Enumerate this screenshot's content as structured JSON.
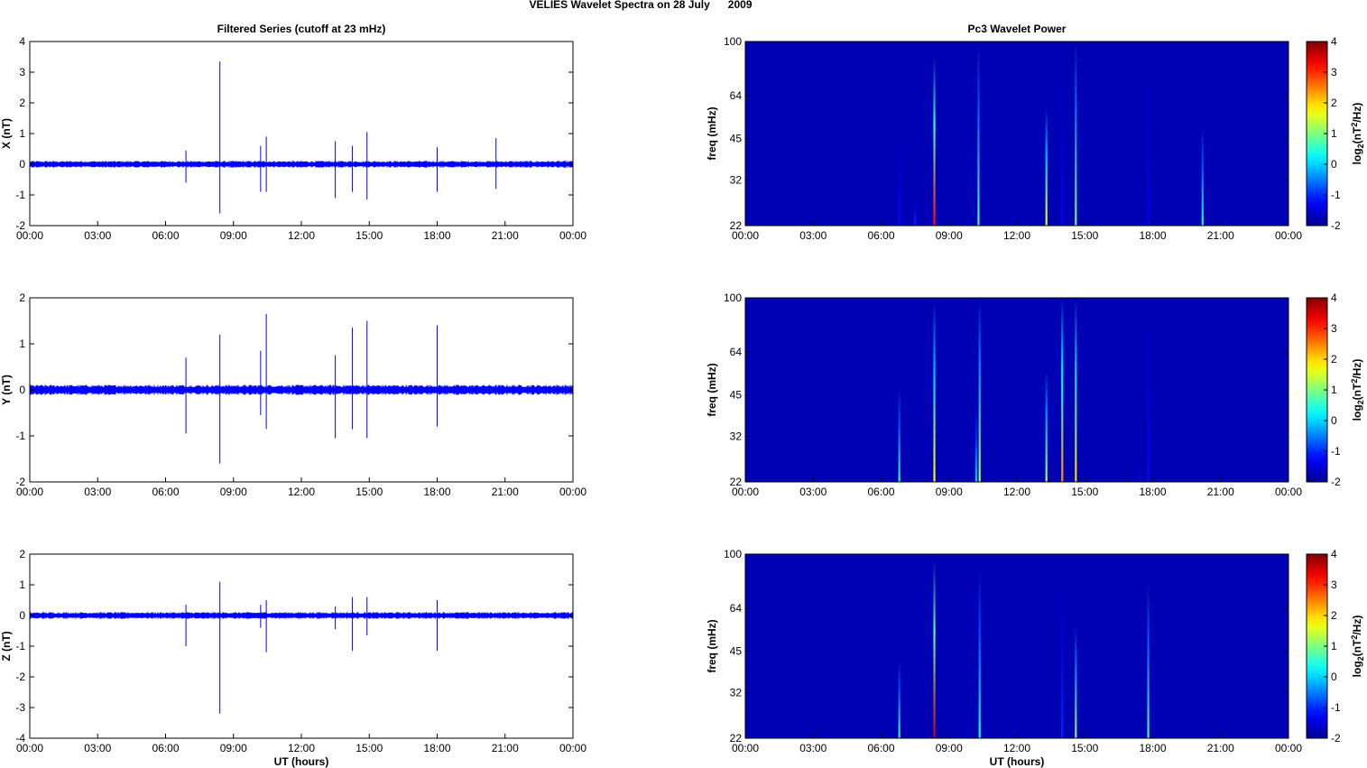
{
  "figure": {
    "title": "VELIES Wavelet Spectra on 28 July      2009",
    "left_title": "Filtered Series (cutoff at 23 mHz)",
    "right_title": "Pc3 Wavelet Power",
    "x_label": "UT (hours)",
    "freq_label": "freq (mHz)",
    "colorbar_label_main": "log",
    "colorbar_label_sub": "2",
    "colorbar_label_tail": "(nT",
    "colorbar_label_sup": "2",
    "colorbar_label_end": "/Hz)"
  },
  "colors": {
    "trace": "#0000ff",
    "axis": "#000000",
    "colormap": [
      "#00008f",
      "#0000ff",
      "#00ffff",
      "#ffff00",
      "#ff0000",
      "#800000"
    ]
  },
  "chart_data": [
    {
      "type": "line",
      "panel": "X",
      "ylabel": "X (nT)",
      "ylim": [
        -2,
        4
      ],
      "yticks": [
        "-2",
        "-1",
        "0",
        "1",
        "2",
        "3",
        "4"
      ],
      "xticks": [
        "00:00",
        "03:00",
        "06:00",
        "09:00",
        "12:00",
        "15:00",
        "18:00",
        "21:00",
        "00:00"
      ],
      "xlim_hours": [
        0,
        24
      ],
      "noise_amplitude": 0.1,
      "spikes": [
        {
          "t": 6.9,
          "max": 0.45,
          "min": -0.6
        },
        {
          "t": 8.4,
          "max": 3.35,
          "min": -1.6
        },
        {
          "t": 10.2,
          "max": 0.6,
          "min": -0.9
        },
        {
          "t": 10.45,
          "max": 0.9,
          "min": -0.9
        },
        {
          "t": 13.5,
          "max": 0.75,
          "min": -1.1
        },
        {
          "t": 14.25,
          "max": 0.6,
          "min": -0.9
        },
        {
          "t": 14.9,
          "max": 1.05,
          "min": -1.15
        },
        {
          "t": 18.0,
          "max": 0.55,
          "min": -0.9
        },
        {
          "t": 20.6,
          "max": 0.85,
          "min": -0.8
        }
      ]
    },
    {
      "type": "line",
      "panel": "Y",
      "ylabel": "Y (nT)",
      "ylim": [
        -2,
        2
      ],
      "yticks": [
        "-2",
        "-1",
        "0",
        "1",
        "2"
      ],
      "xticks": [
        "00:00",
        "03:00",
        "06:00",
        "09:00",
        "12:00",
        "15:00",
        "18:00",
        "21:00",
        "00:00"
      ],
      "xlim_hours": [
        0,
        24
      ],
      "noise_amplitude": 0.1,
      "spikes": [
        {
          "t": 6.9,
          "max": 0.7,
          "min": -0.95
        },
        {
          "t": 8.4,
          "max": 1.2,
          "min": -1.6
        },
        {
          "t": 10.2,
          "max": 0.85,
          "min": -0.55
        },
        {
          "t": 10.45,
          "max": 1.65,
          "min": -0.85
        },
        {
          "t": 13.5,
          "max": 0.75,
          "min": -1.05
        },
        {
          "t": 14.25,
          "max": 1.35,
          "min": -0.85
        },
        {
          "t": 14.9,
          "max": 1.5,
          "min": -1.05
        },
        {
          "t": 18.0,
          "max": 1.4,
          "min": -0.8
        }
      ]
    },
    {
      "type": "line",
      "panel": "Z",
      "ylabel": "Z (nT)",
      "ylim": [
        -4,
        2
      ],
      "yticks": [
        "-4",
        "-3",
        "-2",
        "-1",
        "0",
        "1",
        "2"
      ],
      "xticks": [
        "00:00",
        "03:00",
        "06:00",
        "09:00",
        "12:00",
        "15:00",
        "18:00",
        "21:00",
        "00:00"
      ],
      "xlim_hours": [
        0,
        24
      ],
      "xlabel": "UT (hours)",
      "noise_amplitude": 0.1,
      "spikes": [
        {
          "t": 6.9,
          "max": 0.35,
          "min": -1.0
        },
        {
          "t": 8.4,
          "max": 1.1,
          "min": -3.2
        },
        {
          "t": 10.2,
          "max": 0.35,
          "min": -0.4
        },
        {
          "t": 10.45,
          "max": 0.5,
          "min": -1.2
        },
        {
          "t": 13.5,
          "max": 0.3,
          "min": -0.45
        },
        {
          "t": 14.25,
          "max": 0.6,
          "min": -1.15
        },
        {
          "t": 14.9,
          "max": 0.6,
          "min": -0.65
        },
        {
          "t": 18.0,
          "max": 0.5,
          "min": -1.15
        }
      ]
    },
    {
      "type": "heatmap",
      "panel": "X-power",
      "ylabel": "freq (mHz)",
      "yticks": [
        "22",
        "32",
        "45",
        "64",
        "100"
      ],
      "ytick_values": [
        22,
        32,
        45,
        64,
        100
      ],
      "xticks": [
        "00:00",
        "03:00",
        "06:00",
        "09:00",
        "12:00",
        "15:00",
        "18:00",
        "21:00",
        "00:00"
      ],
      "xlim_hours": [
        0,
        24
      ],
      "ylim_mhz": [
        22,
        100
      ],
      "background_level": -2,
      "colorbar_ticks": [
        "-2",
        "-1",
        "0",
        "1",
        "2",
        "3",
        "4"
      ],
      "colorbar_range": [
        -2,
        4
      ],
      "events": [
        {
          "t": 6.8,
          "top_mhz": 50,
          "peak": -1.2
        },
        {
          "t": 7.5,
          "top_mhz": 28,
          "peak": -1.0
        },
        {
          "t": 8.35,
          "top_mhz": 88,
          "peak": 3.2
        },
        {
          "t": 10.3,
          "top_mhz": 100,
          "peak": 0.6
        },
        {
          "t": 13.3,
          "top_mhz": 58,
          "peak": 1.6
        },
        {
          "t": 14.0,
          "top_mhz": 100,
          "peak": -1.3
        },
        {
          "t": 14.6,
          "top_mhz": 100,
          "peak": 0.9
        },
        {
          "t": 17.8,
          "top_mhz": 100,
          "peak": -1.3
        },
        {
          "t": 20.2,
          "top_mhz": 50,
          "peak": 0.4
        }
      ]
    },
    {
      "type": "heatmap",
      "panel": "Y-power",
      "ylabel": "freq (mHz)",
      "yticks": [
        "22",
        "32",
        "45",
        "64",
        "100"
      ],
      "ytick_values": [
        22,
        32,
        45,
        64,
        100
      ],
      "xticks": [
        "00:00",
        "03:00",
        "06:00",
        "09:00",
        "12:00",
        "15:00",
        "18:00",
        "21:00",
        "00:00"
      ],
      "xlim_hours": [
        0,
        24
      ],
      "ylim_mhz": [
        22,
        100
      ],
      "background_level": -2,
      "colorbar_ticks": [
        "-2",
        "-1",
        "0",
        "1",
        "2",
        "3",
        "4"
      ],
      "colorbar_range": [
        -2,
        4
      ],
      "events": [
        {
          "t": 6.8,
          "top_mhz": 48,
          "peak": 0.4
        },
        {
          "t": 8.35,
          "top_mhz": 98,
          "peak": 1.8
        },
        {
          "t": 10.2,
          "top_mhz": 40,
          "peak": 0.0
        },
        {
          "t": 10.35,
          "top_mhz": 100,
          "peak": 1.2
        },
        {
          "t": 13.3,
          "top_mhz": 55,
          "peak": 1.2
        },
        {
          "t": 14.0,
          "top_mhz": 100,
          "peak": 2.4
        },
        {
          "t": 14.6,
          "top_mhz": 100,
          "peak": 2.0
        },
        {
          "t": 17.4,
          "top_mhz": 27,
          "peak": -1.4
        },
        {
          "t": 17.8,
          "top_mhz": 100,
          "peak": -1.2
        }
      ]
    },
    {
      "type": "heatmap",
      "panel": "Z-power",
      "ylabel": "freq (mHz)",
      "yticks": [
        "22",
        "32",
        "45",
        "64",
        "100"
      ],
      "ytick_values": [
        22,
        32,
        45,
        64,
        100
      ],
      "xticks": [
        "00:00",
        "03:00",
        "06:00",
        "09:00",
        "12:00",
        "15:00",
        "18:00",
        "21:00",
        "00:00"
      ],
      "xlim_hours": [
        0,
        24
      ],
      "xlabel": "UT (hours)",
      "ylim_mhz": [
        22,
        100
      ],
      "background_level": -2,
      "colorbar_ticks": [
        "-2",
        "-1",
        "0",
        "1",
        "2",
        "3",
        "4"
      ],
      "colorbar_range": [
        -2,
        4
      ],
      "events": [
        {
          "t": 6.8,
          "top_mhz": 42,
          "peak": 0.4
        },
        {
          "t": 8.35,
          "top_mhz": 95,
          "peak": 3.6
        },
        {
          "t": 10.35,
          "top_mhz": 90,
          "peak": 0.4
        },
        {
          "t": 14.0,
          "top_mhz": 80,
          "peak": -1.0
        },
        {
          "t": 14.6,
          "top_mhz": 55,
          "peak": 1.0
        },
        {
          "t": 17.8,
          "top_mhz": 80,
          "peak": 0.6
        }
      ]
    }
  ]
}
